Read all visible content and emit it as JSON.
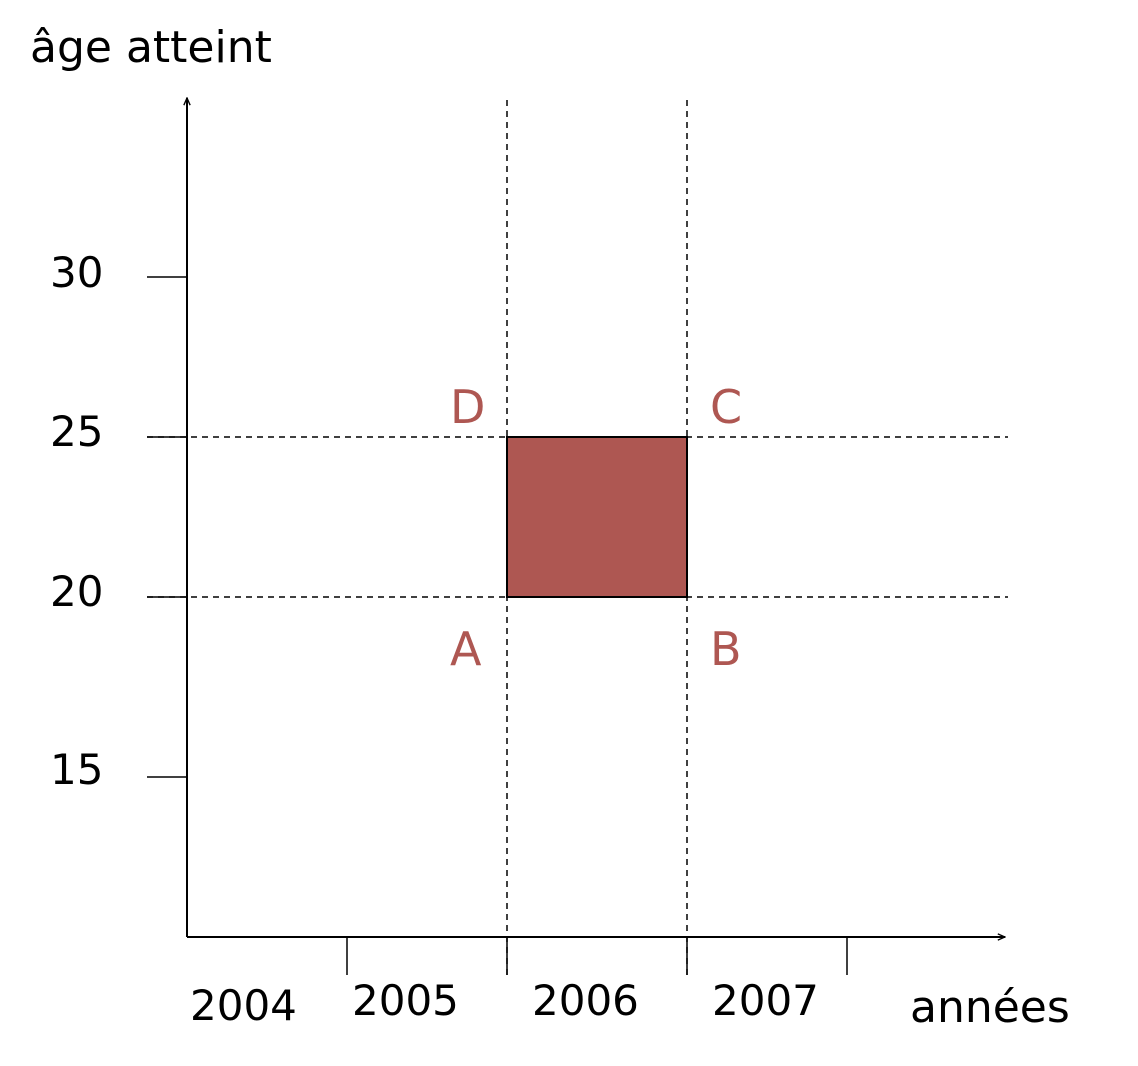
{
  "axes": {
    "y_title": "âge atteint",
    "x_title": "années",
    "y_ticks": [
      "30",
      "25",
      "20",
      "15"
    ],
    "x_ticks": [
      "2004",
      "2005",
      "2006",
      "2007"
    ]
  },
  "points": {
    "A": "A",
    "B": "B",
    "C": "C",
    "D": "D"
  },
  "colors": {
    "highlight": "#AE5752",
    "point_labels": "#AE5752",
    "axes": "#000000"
  }
}
